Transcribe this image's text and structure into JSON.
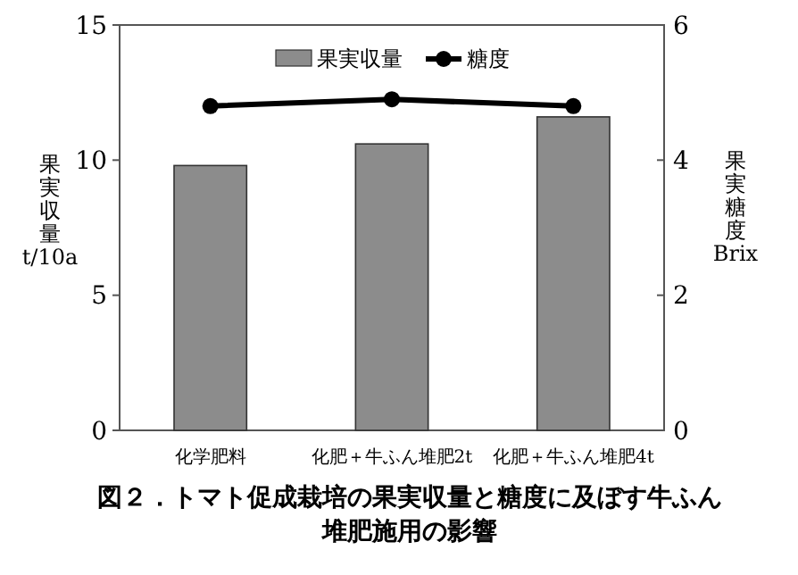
{
  "chart_data": {
    "type": "bar",
    "title": "図２．トマト促成栽培の果実収量と糖度に及ぼす牛ふん堆肥施用の影響",
    "categories": [
      "化学肥料",
      "化肥＋牛ふん堆肥2t",
      "化肥＋牛ふん堆肥4t"
    ],
    "series": [
      {
        "name": "果実収量",
        "color": "#8c8c8c",
        "values": [
          9.8,
          10.6,
          11.6
        ]
      },
      {
        "name": "糖度",
        "type": "line",
        "axis": "y2",
        "color": "#000000",
        "marker": "circle",
        "values": [
          4.8,
          4.9,
          4.8
        ]
      }
    ],
    "ylabel": "果実収量 t/10a",
    "y2label": "果実糖度 Brix",
    "ylim": [
      0,
      15
    ],
    "yticks": [
      0,
      5,
      10,
      15
    ],
    "y2lim": [
      0,
      6
    ],
    "y2ticks": [
      0,
      2,
      4,
      6
    ],
    "legend": "top",
    "grid": false
  }
}
